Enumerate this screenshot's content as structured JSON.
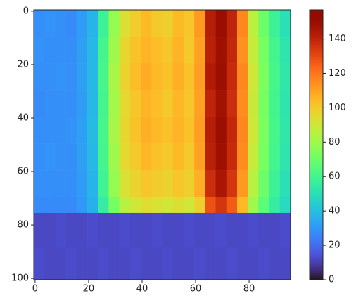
{
  "chart_data": {
    "type": "heatmap",
    "colormap": "turbo",
    "x_edges": [
      -0.5,
      3.5,
      7.5,
      11.5,
      15.5,
      19.5,
      23.5,
      27.5,
      31.5,
      35.5,
      39.5,
      43.5,
      47.5,
      51.5,
      55.5,
      59.5,
      63.5,
      67.5,
      71.5,
      75.5,
      79.5,
      83.5,
      87.5,
      91.5,
      95.5
    ],
    "y_edges": [
      -0.5,
      9.5,
      19.5,
      29.5,
      39.5,
      49.5,
      59.5,
      69.5,
      75.5,
      88.5,
      100.5
    ],
    "values": [
      [
        28,
        29,
        28,
        27,
        31,
        37,
        58,
        78,
        93,
        99,
        104,
        100,
        98,
        104,
        101,
        112,
        142,
        150,
        140,
        116,
        86,
        70,
        58,
        50
      ],
      [
        29,
        28,
        28,
        28,
        32,
        38,
        60,
        80,
        96,
        102,
        106,
        103,
        101,
        106,
        100,
        110,
        141,
        148,
        139,
        114,
        88,
        72,
        60,
        52
      ],
      [
        28,
        28,
        29,
        28,
        32,
        38,
        61,
        82,
        97,
        103,
        108,
        104,
        102,
        107,
        102,
        111,
        143,
        149,
        138,
        116,
        90,
        73,
        61,
        53
      ],
      [
        27,
        28,
        28,
        28,
        31,
        38,
        60,
        81,
        95,
        101,
        106,
        103,
        100,
        105,
        101,
        110,
        140,
        147,
        137,
        115,
        89,
        72,
        60,
        52
      ],
      [
        28,
        28,
        28,
        29,
        32,
        39,
        61,
        82,
        96,
        102,
        107,
        104,
        102,
        106,
        102,
        111,
        142,
        149,
        139,
        116,
        90,
        73,
        61,
        53
      ],
      [
        28,
        29,
        28,
        28,
        32,
        38,
        60,
        80,
        95,
        100,
        105,
        102,
        100,
        104,
        100,
        110,
        141,
        148,
        138,
        115,
        88,
        72,
        60,
        52
      ],
      [
        28,
        28,
        28,
        28,
        31,
        37,
        59,
        78,
        92,
        97,
        101,
        99,
        97,
        101,
        98,
        107,
        137,
        145,
        135,
        112,
        85,
        70,
        58,
        50
      ],
      [
        27,
        27,
        27,
        27,
        30,
        36,
        55,
        72,
        85,
        90,
        94,
        92,
        90,
        93,
        90,
        98,
        128,
        135,
        126,
        104,
        80,
        66,
        55,
        48
      ],
      [
        12,
        12,
        13,
        12,
        12,
        13,
        12,
        12,
        13,
        12,
        12,
        13,
        12,
        12,
        13,
        12,
        12,
        13,
        12,
        12,
        13,
        12,
        12,
        13
      ],
      [
        13,
        12,
        12,
        13,
        12,
        12,
        13,
        12,
        12,
        13,
        12,
        12,
        13,
        12,
        12,
        13,
        12,
        12,
        13,
        12,
        12,
        13,
        12,
        12
      ]
    ],
    "xlim": [
      -0.5,
      95.5
    ],
    "ylim": [
      100.5,
      -0.5
    ],
    "xticks": [
      0,
      20,
      40,
      60,
      80
    ],
    "yticks": [
      0,
      20,
      40,
      60,
      80,
      100
    ],
    "clim": [
      0,
      157
    ],
    "cticks": [
      0,
      20,
      40,
      60,
      80,
      100,
      120,
      140
    ]
  }
}
